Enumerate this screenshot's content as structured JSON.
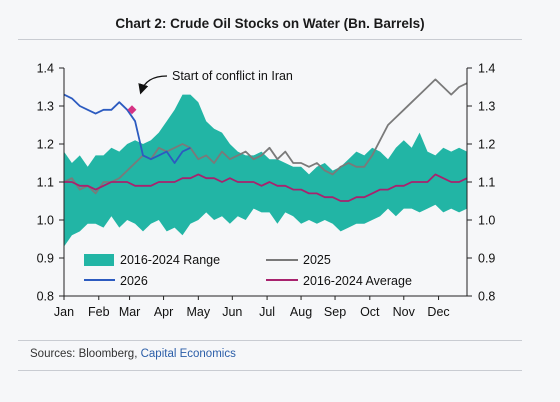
{
  "header": {
    "title": "Chart 2: Crude Oil Stocks on Water (Bn. Barrels)"
  },
  "footer": {
    "sources_prefix": "Sources: Bloomberg,",
    "sources_link": "Capital Economics"
  },
  "colors": {
    "range": "#22b5a5",
    "line_2025": "#7a7a7a",
    "line_2026": "#2c5bc0",
    "line_avg": "#a8226e",
    "marker": "#d63384",
    "axis": "#222222",
    "background": "#f6f7f9"
  },
  "chart_data": {
    "type": "line",
    "title": "Chart 2: Crude Oil Stocks on Water (Bn. Barrels)",
    "xlabel": "",
    "ylabel": "",
    "x_range": [
      1,
      52
    ],
    "ylim": [
      0.8,
      1.4
    ],
    "yticks": [
      0.8,
      0.9,
      1.0,
      1.1,
      1.2,
      1.3,
      1.4
    ],
    "y_tick_labels": [
      "0.8",
      "0.9",
      "1.0",
      "1.1",
      "1.2",
      "1.3",
      "1.4"
    ],
    "y_tick_labels_right": [
      "0.8",
      "0.9",
      "1.0",
      "1.1",
      "1.2",
      "1.3",
      "1.4"
    ],
    "month_ticks": [
      1,
      5.4,
      9.3,
      13.6,
      18,
      22.3,
      26.7,
      31,
      35.3,
      39.7,
      44,
      48.4
    ],
    "month_labels": [
      "Jan",
      "Feb",
      "Mar",
      "Apr",
      "May",
      "Jun",
      "Jul",
      "Aug",
      "Sep",
      "Oct",
      "Nov",
      "Dec"
    ],
    "grid": false,
    "legend_position": "bottom-left",
    "series": [
      {
        "name": "2016-2024 Range",
        "type": "band",
        "x": [
          1,
          2,
          3,
          4,
          5,
          6,
          7,
          8,
          9,
          10,
          11,
          12,
          13,
          14,
          15,
          16,
          17,
          18,
          19,
          20,
          21,
          22,
          23,
          24,
          25,
          26,
          27,
          28,
          29,
          30,
          31,
          32,
          33,
          34,
          35,
          36,
          37,
          38,
          39,
          40,
          41,
          42,
          43,
          44,
          45,
          46,
          47,
          48,
          49,
          50,
          51,
          52
        ],
        "upper": [
          1.18,
          1.15,
          1.17,
          1.14,
          1.17,
          1.17,
          1.19,
          1.18,
          1.2,
          1.21,
          1.2,
          1.21,
          1.23,
          1.26,
          1.29,
          1.33,
          1.33,
          1.31,
          1.26,
          1.24,
          1.23,
          1.2,
          1.18,
          1.17,
          1.17,
          1.18,
          1.16,
          1.16,
          1.15,
          1.14,
          1.14,
          1.12,
          1.14,
          1.15,
          1.13,
          1.14,
          1.16,
          1.18,
          1.17,
          1.19,
          1.18,
          1.16,
          1.19,
          1.21,
          1.19,
          1.23,
          1.18,
          1.17,
          1.19,
          1.18,
          1.19,
          1.18
        ],
        "lower": [
          0.93,
          0.96,
          0.97,
          0.99,
          0.99,
          0.98,
          1.01,
          0.98,
          1.0,
          0.99,
          0.97,
          0.99,
          1.0,
          0.97,
          0.98,
          0.96,
          0.99,
          1.0,
          1.02,
          1.0,
          1.01,
          0.99,
          1.01,
          1.0,
          1.03,
          1.02,
          1.02,
          0.99,
          1.02,
          1.01,
          0.99,
          1.0,
          0.99,
          1.0,
          0.99,
          0.97,
          0.98,
          0.99,
          0.99,
          1.0,
          1.01,
          1.03,
          1.01,
          1.03,
          1.03,
          1.02,
          1.03,
          1.04,
          1.02,
          1.03,
          1.02,
          1.03
        ]
      },
      {
        "name": "2025",
        "x": [
          1,
          2,
          3,
          4,
          5,
          6,
          7,
          8,
          9,
          10,
          11,
          12,
          13,
          14,
          15,
          16,
          17,
          18,
          19,
          20,
          21,
          22,
          23,
          24,
          25,
          26,
          27,
          28,
          29,
          30,
          31,
          32,
          33,
          34,
          35,
          36,
          37,
          38,
          39,
          40,
          41,
          42,
          43,
          44,
          45,
          46,
          47,
          48,
          49,
          50,
          51,
          52
        ],
        "values": [
          1.1,
          1.11,
          1.08,
          1.09,
          1.07,
          1.1,
          1.1,
          1.11,
          1.13,
          1.15,
          1.17,
          1.16,
          1.19,
          1.18,
          1.19,
          1.2,
          1.19,
          1.16,
          1.17,
          1.15,
          1.18,
          1.16,
          1.17,
          1.18,
          1.16,
          1.17,
          1.19,
          1.16,
          1.18,
          1.15,
          1.15,
          1.14,
          1.15,
          1.13,
          1.12,
          1.14,
          1.15,
          1.14,
          1.14,
          1.17,
          1.21,
          1.25,
          1.27,
          1.29,
          1.31,
          1.33,
          1.35,
          1.37,
          1.35,
          1.33,
          1.35,
          1.36
        ]
      },
      {
        "name": "2026",
        "x": [
          1,
          2,
          3,
          4,
          5,
          6,
          7,
          8,
          9,
          10,
          11,
          12,
          13,
          14,
          15,
          16,
          17
        ],
        "values": [
          1.33,
          1.32,
          1.3,
          1.29,
          1.28,
          1.29,
          1.29,
          1.31,
          1.29,
          1.26,
          1.17,
          1.16,
          1.17,
          1.18,
          1.15,
          1.18,
          1.19
        ]
      },
      {
        "name": "2016-2024 Average",
        "x": [
          1,
          2,
          3,
          4,
          5,
          6,
          7,
          8,
          9,
          10,
          11,
          12,
          13,
          14,
          15,
          16,
          17,
          18,
          19,
          20,
          21,
          22,
          23,
          24,
          25,
          26,
          27,
          28,
          29,
          30,
          31,
          32,
          33,
          34,
          35,
          36,
          37,
          38,
          39,
          40,
          41,
          42,
          43,
          44,
          45,
          46,
          47,
          48,
          49,
          50,
          51,
          52
        ],
        "values": [
          1.1,
          1.1,
          1.09,
          1.09,
          1.08,
          1.09,
          1.1,
          1.1,
          1.1,
          1.09,
          1.09,
          1.09,
          1.1,
          1.1,
          1.1,
          1.11,
          1.11,
          1.12,
          1.11,
          1.11,
          1.1,
          1.11,
          1.1,
          1.1,
          1.1,
          1.09,
          1.1,
          1.09,
          1.09,
          1.08,
          1.08,
          1.07,
          1.07,
          1.06,
          1.06,
          1.05,
          1.05,
          1.06,
          1.06,
          1.07,
          1.08,
          1.08,
          1.09,
          1.09,
          1.1,
          1.1,
          1.1,
          1.12,
          1.11,
          1.1,
          1.1,
          1.11
        ]
      }
    ],
    "annotation": {
      "text": "Start of conflict in Iran",
      "x": 9.6,
      "y": 1.29
    }
  }
}
